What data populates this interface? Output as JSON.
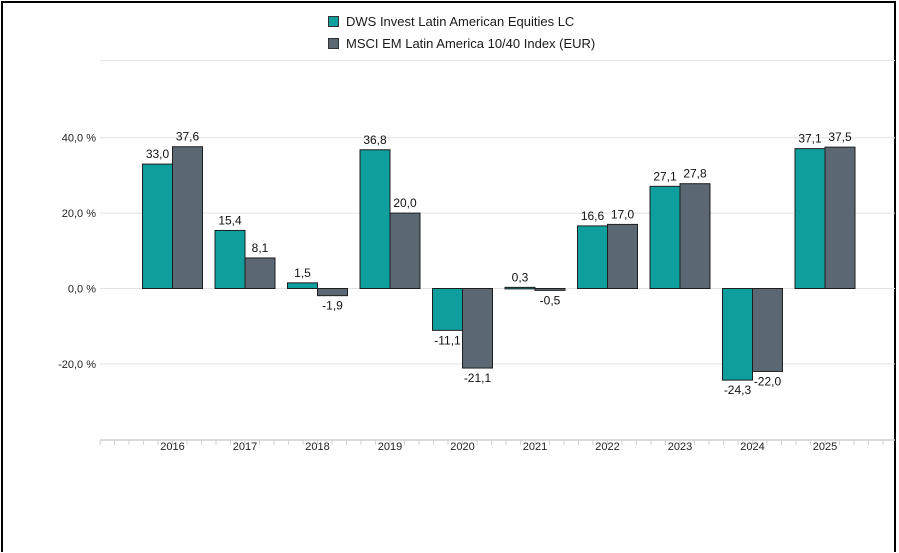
{
  "chart_data": {
    "type": "bar",
    "categories": [
      "2016",
      "2017",
      "2018",
      "2019",
      "2020",
      "2021",
      "2022",
      "2023",
      "2024",
      "2025"
    ],
    "series": [
      {
        "name": "DWS Invest Latin American Equities LC",
        "values": [
          33.0,
          15.4,
          1.5,
          36.8,
          -11.1,
          0.3,
          16.6,
          27.1,
          -24.3,
          37.1
        ],
        "labels": [
          "33,0",
          "15,4",
          "1,5",
          "36,8",
          "-11,1",
          "0,3",
          "16,6",
          "27,1",
          "-24,3",
          "37,1"
        ],
        "color": "#0f9e9e"
      },
      {
        "name": "MSCI EM Latin America 10/40 Index (EUR)",
        "values": [
          37.6,
          8.1,
          -1.9,
          20.0,
          -21.1,
          -0.5,
          17.0,
          27.8,
          -22.0,
          37.5
        ],
        "labels": [
          "37,6",
          "8,1",
          "-1,9",
          "20,0",
          "-21,1",
          "-0,5",
          "17,0",
          "27,8",
          "-22,0",
          "37,5"
        ],
        "color": "#5b6873"
      }
    ],
    "yticks": [
      40,
      20,
      0,
      -20
    ],
    "ytick_labels": [
      "40,0 %",
      "20,0 %",
      "0,0 %",
      "-20,0 %"
    ],
    "ylim": [
      -40,
      60
    ],
    "grid": true,
    "legend_position": "top-center"
  }
}
